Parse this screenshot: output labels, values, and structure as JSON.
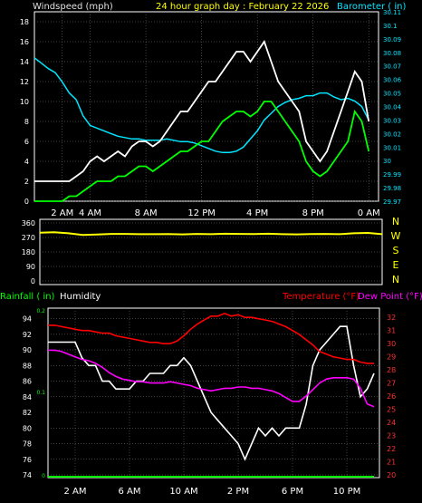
{
  "chart_data": [
    {
      "type": "line",
      "title": "24 hour graph day : February 22 2026",
      "left_axis_label": "Windspeed (mph)",
      "right_axis_label": "Barometer ( in)",
      "x_ticks": [
        "2 AM",
        "4 AM",
        "8 AM",
        "12 PM",
        "4 PM",
        "8 PM",
        "0 AM"
      ],
      "x_tick_hours": [
        2,
        4,
        8,
        12,
        16,
        20,
        24
      ],
      "left_ticks": [
        0,
        2,
        4,
        6,
        8,
        10,
        12,
        14,
        16,
        18
      ],
      "left_range": [
        0,
        19
      ],
      "right_ticks": [
        "29.97",
        "29.98",
        "29.99",
        "30",
        "30.01",
        "30.02",
        "30.03",
        "30.04",
        "30.05",
        "30.06",
        "30.07",
        "30.08",
        "30.09",
        "30.1",
        "30.11"
      ],
      "right_range": [
        29.97,
        30.11
      ],
      "grid": true,
      "colors": {
        "gust": "#ffffff",
        "wind": "#00ff00",
        "barometer": "#00e5ff",
        "title": "#ffff00"
      },
      "series": [
        {
          "key": "barometer",
          "x": [
            0,
            0.5,
            1,
            1.5,
            2,
            2.5,
            3,
            3.5,
            4,
            4.5,
            5,
            5.5,
            6,
            6.5,
            7,
            7.5,
            8,
            8.5,
            9,
            9.5,
            10,
            10.5,
            11,
            11.5,
            12,
            12.5,
            13,
            13.5,
            14,
            14.5,
            15,
            15.5,
            16,
            16.5,
            17,
            17.5,
            18,
            18.5,
            19,
            19.5,
            20,
            20.5,
            21,
            21.5,
            22,
            22.5,
            23,
            23.5,
            24
          ],
          "values": [
            30.076,
            30.072,
            30.068,
            30.065,
            30.058,
            30.05,
            30.045,
            30.033,
            30.026,
            30.024,
            30.022,
            30.02,
            30.018,
            30.017,
            30.016,
            30.016,
            30.015,
            30.015,
            30.015,
            30.016,
            30.015,
            30.014,
            30.014,
            30.013,
            30.011,
            30.009,
            30.007,
            30.006,
            30.006,
            30.007,
            30.01,
            30.016,
            30.022,
            30.03,
            30.035,
            30.04,
            30.043,
            30.045,
            30.046,
            30.048,
            30.048,
            30.05,
            30.05,
            30.047,
            30.045,
            30.046,
            30.044,
            30.04,
            30.03
          ]
        },
        {
          "key": "wind",
          "x": [
            0,
            0.5,
            1,
            1.5,
            2,
            2.5,
            3,
            3.5,
            4,
            4.5,
            5,
            5.5,
            6,
            6.5,
            7,
            7.5,
            8,
            8.5,
            9,
            9.5,
            10,
            10.5,
            11,
            11.5,
            12,
            12.5,
            13,
            13.5,
            14,
            14.5,
            15,
            15.5,
            16,
            16.5,
            17,
            17.5,
            18,
            18.5,
            19,
            19.5,
            20,
            20.5,
            21,
            21.5,
            22,
            22.5,
            23,
            23.5,
            24
          ],
          "values": [
            0,
            0,
            0,
            0,
            0,
            0.5,
            0.5,
            1,
            1.5,
            2,
            2,
            2,
            2.5,
            2.5,
            3,
            3.5,
            3.5,
            3,
            3.5,
            4,
            4.5,
            5,
            5,
            5.5,
            6,
            6,
            7,
            8,
            8.5,
            9,
            9,
            8.5,
            9,
            10,
            10,
            9,
            8,
            7,
            6,
            4,
            3,
            2.5,
            3,
            4,
            5,
            6,
            9,
            8,
            5
          ]
        },
        {
          "key": "gust",
          "x": [
            0,
            0.5,
            1,
            1.5,
            2,
            2.5,
            3,
            3.5,
            4,
            4.5,
            5,
            5.5,
            6,
            6.5,
            7,
            7.5,
            8,
            8.5,
            9,
            9.5,
            10,
            10.5,
            11,
            11.5,
            12,
            12.5,
            13,
            13.5,
            14,
            14.5,
            15,
            15.5,
            16,
            16.5,
            17,
            17.5,
            18,
            18.5,
            19,
            19.5,
            20,
            20.5,
            21,
            21.5,
            22,
            22.5,
            23,
            23.5,
            24
          ],
          "values": [
            2,
            2,
            2,
            2,
            2,
            2,
            2.5,
            3,
            4,
            4.5,
            4,
            4.5,
            5,
            4.5,
            5.5,
            6,
            6,
            5.5,
            6,
            7,
            8,
            9,
            9,
            10,
            11,
            12,
            12,
            13,
            14,
            15,
            15,
            14,
            15,
            16,
            14,
            12,
            11,
            10,
            9,
            6,
            5,
            4,
            5,
            7,
            9,
            11,
            13,
            12,
            8
          ]
        }
      ]
    },
    {
      "type": "line",
      "y_ticks": [
        "360",
        "270",
        "180",
        "90",
        "0"
      ],
      "y_range": [
        0,
        360
      ],
      "compass_labels": [
        "N",
        "W",
        "S",
        "E",
        "N"
      ],
      "x_hours": [
        0,
        1,
        2,
        3,
        4,
        5,
        6,
        7,
        8,
        9,
        10,
        11,
        12,
        13,
        14,
        15,
        16,
        17,
        18,
        19,
        20,
        21,
        22,
        23,
        24
      ],
      "series": [
        {
          "key": "wind_direction",
          "color": "#ffff00",
          "values": [
            300,
            302,
            296,
            285,
            288,
            292,
            292,
            290,
            290,
            291,
            289,
            292,
            290,
            293,
            292,
            291,
            293,
            290,
            289,
            291,
            292,
            290,
            296,
            298,
            290
          ]
        }
      ]
    },
    {
      "type": "line",
      "left_labels": {
        "rainfall": "Rainfall ( in)",
        "humidity": "Humidity"
      },
      "right_labels": {
        "temperature": "Temperature (°F)",
        "dewpoint": "Dew Point (°F)"
      },
      "x_ticks": [
        "2 AM",
        "6 AM",
        "10 AM",
        "2 PM",
        "6 PM",
        "10 PM"
      ],
      "x_tick_hours": [
        2,
        6,
        10,
        14,
        18,
        22
      ],
      "humidity_ticks": [
        74,
        76,
        78,
        80,
        82,
        84,
        86,
        88,
        90,
        92,
        94
      ],
      "humidity_range": [
        74,
        95
      ],
      "rain_ticks": [
        "0",
        "0.1",
        "0.2"
      ],
      "temp_ticks": [
        20,
        21,
        22,
        23,
        24,
        25,
        26,
        27,
        28,
        29,
        30,
        31,
        32
      ],
      "temp_range": [
        20,
        32.5
      ],
      "colors": {
        "humidity": "#ffffff",
        "temperature": "#ff0000",
        "dewpoint": "#ff00ff",
        "rain": "#00ff00"
      },
      "series": [
        {
          "key": "humidity",
          "x": [
            0,
            0.5,
            1,
            1.5,
            2,
            2.5,
            3,
            3.5,
            4,
            4.5,
            5,
            5.5,
            6,
            6.5,
            7,
            7.5,
            8,
            8.5,
            9,
            9.5,
            10,
            10.5,
            11,
            11.5,
            12,
            12.5,
            13,
            13.5,
            14,
            14.5,
            15,
            15.5,
            16,
            16.5,
            17,
            17.5,
            18,
            18.5,
            19,
            19.5,
            20,
            20.5,
            21,
            21.5,
            22,
            22.5,
            23,
            23.5,
            24
          ],
          "values": [
            91,
            91,
            91,
            91,
            91,
            89,
            88,
            88,
            86,
            86,
            85,
            85,
            85,
            86,
            86,
            87,
            87,
            87,
            88,
            88,
            89,
            88,
            86,
            84,
            82,
            81,
            80,
            79,
            78,
            76,
            78,
            80,
            79,
            80,
            79,
            80,
            80,
            80,
            83,
            88,
            90,
            91,
            92,
            93,
            93,
            88,
            84,
            85,
            87
          ]
        },
        {
          "key": "temperature",
          "x": [
            0,
            0.5,
            1,
            1.5,
            2,
            2.5,
            3,
            3.5,
            4,
            4.5,
            5,
            5.5,
            6,
            6.5,
            7,
            7.5,
            8,
            8.5,
            9,
            9.5,
            10,
            10.5,
            11,
            11.5,
            12,
            12.5,
            13,
            13.5,
            14,
            14.5,
            15,
            15.5,
            16,
            16.5,
            17,
            17.5,
            18,
            18.5,
            19,
            19.5,
            20,
            20.5,
            21,
            21.5,
            22,
            22.5,
            23,
            23.5,
            24
          ],
          "values": [
            31.4,
            31.4,
            31.3,
            31.2,
            31.1,
            31,
            31,
            30.9,
            30.8,
            30.8,
            30.6,
            30.5,
            30.4,
            30.3,
            30.2,
            30.1,
            30.1,
            30,
            30,
            30.2,
            30.6,
            31.1,
            31.5,
            31.8,
            32.1,
            32.1,
            32.3,
            32.1,
            32.2,
            32,
            32,
            31.9,
            31.8,
            31.7,
            31.5,
            31.3,
            31,
            30.7,
            30.3,
            29.9,
            29.4,
            29.2,
            29,
            28.9,
            28.8,
            28.8,
            28.6,
            28.5,
            28.5
          ]
        },
        {
          "key": "dewpoint",
          "x": [
            0,
            0.5,
            1,
            1.5,
            2,
            2.5,
            3,
            3.5,
            4,
            4.5,
            5,
            5.5,
            6,
            6.5,
            7,
            7.5,
            8,
            8.5,
            9,
            9.5,
            10,
            10.5,
            11,
            11.5,
            12,
            12.5,
            13,
            13.5,
            14,
            14.5,
            15,
            15.5,
            16,
            16.5,
            17,
            17.5,
            18,
            18.5,
            19,
            19.5,
            20,
            20.5,
            21,
            21.5,
            22,
            22.5,
            23,
            23.5,
            24
          ],
          "values": [
            29.5,
            29.5,
            29.4,
            29.2,
            29,
            28.8,
            28.7,
            28.5,
            28.2,
            27.8,
            27.5,
            27.3,
            27.2,
            27.1,
            27.1,
            27,
            27,
            27,
            27.1,
            27,
            26.9,
            26.8,
            26.6,
            26.5,
            26.4,
            26.5,
            26.6,
            26.6,
            26.7,
            26.7,
            26.6,
            26.6,
            26.5,
            26.4,
            26.2,
            25.9,
            25.6,
            25.6,
            26,
            26.5,
            27,
            27.3,
            27.4,
            27.4,
            27.4,
            27.3,
            26.6,
            25.4,
            25.2
          ]
        },
        {
          "key": "rain",
          "x": [
            0,
            24
          ],
          "values": [
            0,
            0
          ]
        }
      ]
    }
  ]
}
